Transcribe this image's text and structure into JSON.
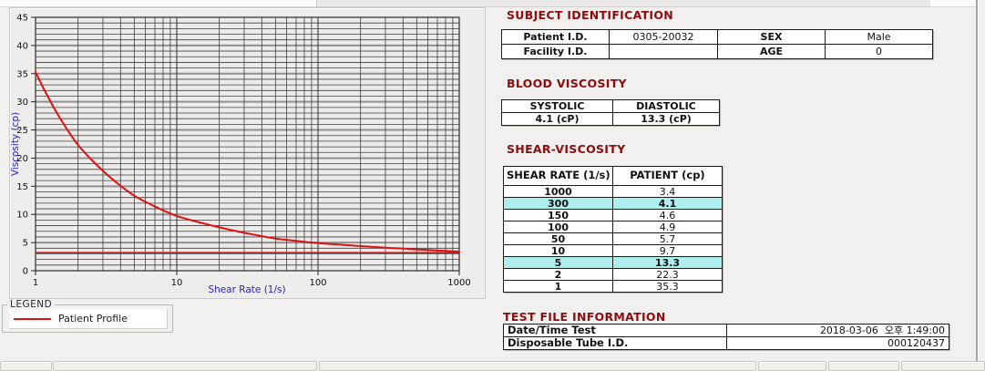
{
  "colors": {
    "section_title": "#8e0c0e",
    "table_header_bg": "#f18181",
    "row_highlight_bg": "#aeeeee",
    "curve_red": "#dd1111",
    "axis_label_blue": "#2222cc"
  },
  "chart_data": {
    "type": "line",
    "x_scale": "log",
    "xlabel": "Shear Rate (1/s)",
    "ylabel": "Viscosity (cp)",
    "xlim": [
      1,
      1000
    ],
    "ylim": [
      0,
      45
    ],
    "x_ticks": [
      1,
      10,
      100,
      1000
    ],
    "y_ticks": [
      0,
      5,
      10,
      15,
      20,
      25,
      30,
      35,
      40,
      45
    ],
    "y_minor_step": 1,
    "grid": true,
    "reference_line_y": 3.2,
    "series": [
      {
        "name": "Patient Profile",
        "color": "#dd1111",
        "x": [
          1,
          2,
          5,
          10,
          50,
          100,
          150,
          300,
          1000
        ],
        "y": [
          35.3,
          22.3,
          13.3,
          9.7,
          5.7,
          4.9,
          4.6,
          4.1,
          3.4
        ]
      }
    ],
    "legend": {
      "box_label": "LEGEND",
      "entries": [
        {
          "label": "Patient Profile",
          "color": "#dd1111"
        }
      ]
    }
  },
  "sections": {
    "subject_identification": {
      "title": "SUBJECT IDENTIFICATION",
      "fields": [
        {
          "label": "Patient I.D.",
          "value": "0305-20032"
        },
        {
          "label": "SEX",
          "value": "Male"
        },
        {
          "label": "Facility I.D.",
          "value": ""
        },
        {
          "label": "AGE",
          "value": "0"
        }
      ]
    },
    "blood_viscosity": {
      "title": "BLOOD VISCOSITY",
      "headers": [
        "SYSTOLIC",
        "DIASTOLIC"
      ],
      "values": [
        "4.1 (cP)",
        "13.3 (cP)"
      ]
    },
    "shear_viscosity": {
      "title": "SHEAR-VISCOSITY",
      "headers": [
        "SHEAR RATE (1/s)",
        "PATIENT (cp)"
      ],
      "rows": [
        {
          "rate": "1000",
          "value": "3.4",
          "highlight": false
        },
        {
          "rate": "300",
          "value": "4.1",
          "highlight": true
        },
        {
          "rate": "150",
          "value": "4.6",
          "highlight": false
        },
        {
          "rate": "100",
          "value": "4.9",
          "highlight": false
        },
        {
          "rate": "50",
          "value": "5.7",
          "highlight": false
        },
        {
          "rate": "10",
          "value": "9.7",
          "highlight": false
        },
        {
          "rate": "5",
          "value": "13.3",
          "highlight": true
        },
        {
          "rate": "2",
          "value": "22.3",
          "highlight": false
        },
        {
          "rate": "1",
          "value": "35.3",
          "highlight": false
        }
      ]
    },
    "test_file_information": {
      "title": "TEST FILE INFORMATION",
      "rows": [
        {
          "label": "Date/Time Test",
          "value": "2018-03-06  오후 1:49:00"
        },
        {
          "label": "Disposable Tube I.D.",
          "value": "000120437"
        }
      ]
    }
  }
}
